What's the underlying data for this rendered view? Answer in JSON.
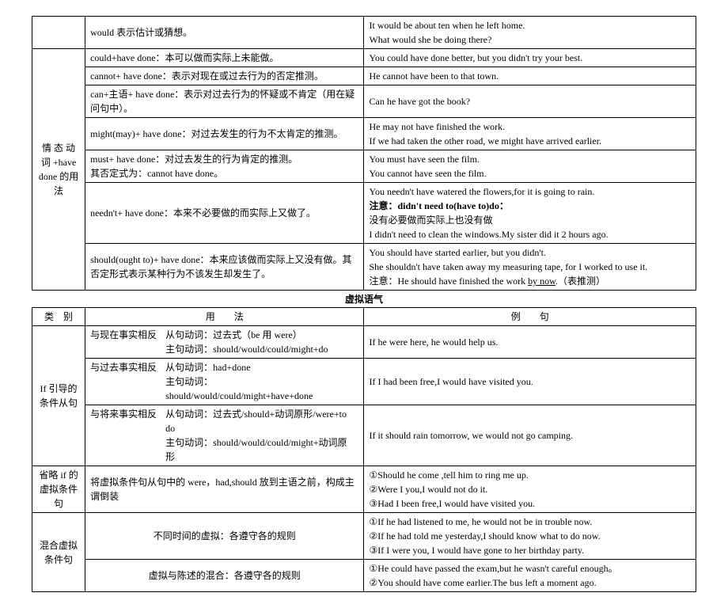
{
  "table1": {
    "cat": "情 态 动 词 +have done 的用法",
    "rows": [
      {
        "usage": "would 表示估计或猜想。",
        "ex": "It would be about ten when he left home.\nWhat would she be doing there?"
      },
      {
        "usage": "could+have done：本可以做而实际上未能做。",
        "ex": "You could have done better, but you didn't try your best."
      },
      {
        "usage": "cannot+ have done：表示对现在或过去行为的否定推测。",
        "ex": "He cannot have been to that town."
      },
      {
        "usage": "can+主语+ have done：表示对过去行为的怀疑或不肯定（用在疑问句中）。",
        "ex": "Can he have got the book?"
      },
      {
        "usage": "might(may)+ have done：对过去发生的行为不太肯定的推测。",
        "ex": "He may not have finished the work.\nIf we had taken the other road, we might have arrived earlier."
      },
      {
        "usage": "must+ have done：对过去发生的行为肯定的推测。\n其否定式为：cannot have done。",
        "ex": "You must have seen the film.\nYou cannot have seen the film."
      },
      {
        "usage": "needn't+ have done：本来不必要做的而实际上又做了。",
        "ex": "You needn't have watered the flowers,for it is going to rain.\n注意：didn't need to(have to)do：\n没有必要做而实际上也没有做\nI didn't need to clean the windows.My sister did it 2 hours ago."
      },
      {
        "usage": "should(ought to)+ have done：本来应该做而实际上又没有做。其否定形式表示某种行为不该发生却发生了。",
        "ex": "You should have started earlier, but you didn't.\nShe shouldn't have taken away my measuring tape, for I worked to use it.\n注意：He should have finished the work by now.（表推测）"
      }
    ]
  },
  "intertitle": "虚拟语气",
  "table2": {
    "header": {
      "cat": "类　别",
      "usage": "用　　法",
      "ex": "例　　句"
    },
    "sections": [
      {
        "cat": "If 引导的条件从句",
        "rows": [
          {
            "sub": "与现在事实相反",
            "usage": "从句动词：过去式（be 用 were）\n主句动词：should/would/could/might+do",
            "ex": "If he were here, he would help us."
          },
          {
            "sub": "与过去事实相反",
            "usage": "从句动词：had+done\n主句动词：should/would/could/might+have+done",
            "ex": "If I had been free,I would have visited you."
          },
          {
            "sub": "与将来事实相反",
            "usage": "从句动词：过去式/should+动词原形/were+to do\n主句动词：should/would/could/might+动词原形",
            "ex": "If it should rain tomorrow, we would not go camping."
          }
        ]
      },
      {
        "cat": "省略 if 的虚拟条件句",
        "rows": [
          {
            "usage": "将虚拟条件句从句中的 were，had,should 放到主语之前，构成主谓倒装",
            "ex": "①Should he come ,tell him to ring me up.\n②Were I you,I would not do it.\n③Had I been free,I would have visited you."
          }
        ]
      },
      {
        "cat": "混合虚拟条件句",
        "rows": [
          {
            "usage": "不同时间的虚拟：各遵守各的规则",
            "ex": "①If he had listened to me, he would not be in trouble now.\n②If he had told me yesterday,I should know what to do now.\n③If I were you, I would have gone to her birthday party."
          },
          {
            "usage": "虚拟与陈述的混合：各遵守各的规则",
            "ex": "①He could have passed the exam,but he wasn't careful enough。\n②You should have come earlier.The bus left a moment ago."
          }
        ]
      }
    ]
  }
}
